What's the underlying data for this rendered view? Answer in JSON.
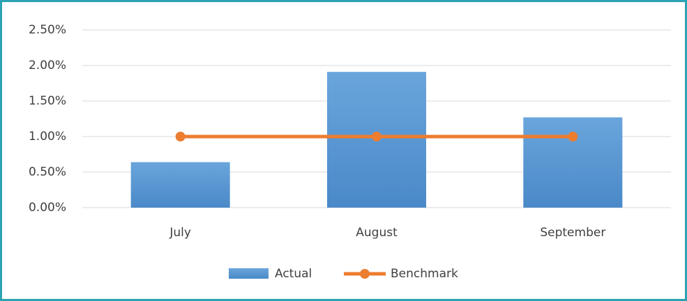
{
  "chart_data": {
    "type": "combo",
    "categories": [
      "July",
      "August",
      "September"
    ],
    "series": [
      {
        "name": "Actual",
        "type": "bar",
        "color": "#5b9bd5",
        "values": [
          0.64,
          1.91,
          1.27
        ]
      },
      {
        "name": "Benchmark",
        "type": "line",
        "color": "#ed7d31",
        "values": [
          1.0,
          1.0,
          1.0
        ]
      }
    ],
    "ylim": [
      0,
      2.5
    ],
    "yticks": [
      {
        "value": 0,
        "label": "0.00%"
      },
      {
        "value": 0.5,
        "label": "0.50%"
      },
      {
        "value": 1,
        "label": "1.00%"
      },
      {
        "value": 1.5,
        "label": "1.50%"
      },
      {
        "value": 2,
        "label": "2.00%"
      },
      {
        "value": 2.5,
        "label": "2.50%"
      }
    ],
    "grid": true,
    "legend": "bottom"
  }
}
